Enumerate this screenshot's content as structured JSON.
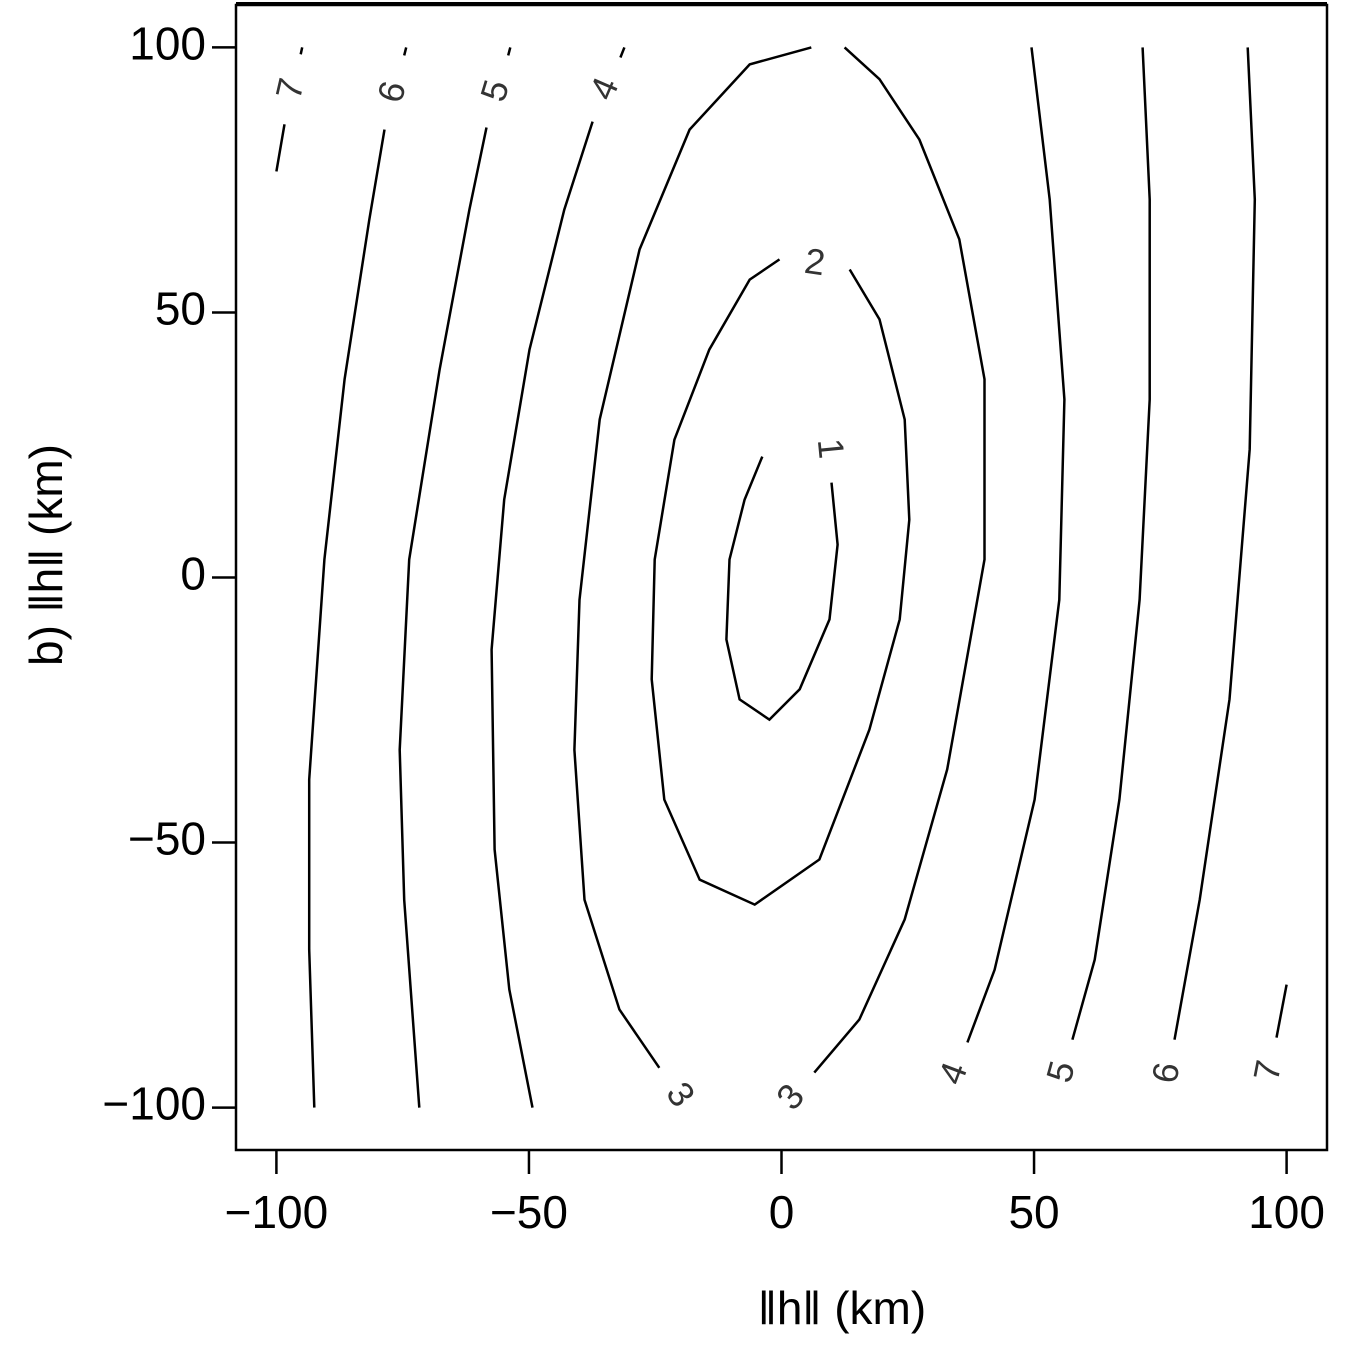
{
  "chart_data": {
    "type": "contour",
    "x_label": "‖h‖ (km)",
    "y_label": "b) ‖h‖ (km)",
    "xlim": [
      -108,
      108
    ],
    "ylim": [
      -108,
      108
    ],
    "xticks": [
      {
        "value": -100,
        "label": "−100"
      },
      {
        "value": -50,
        "label": "−50"
      },
      0,
      50,
      100
    ],
    "yticks": [
      {
        "value": -100,
        "label": "−100"
      },
      {
        "value": -50,
        "label": "−50"
      },
      0,
      50,
      100
    ],
    "color": "#000000",
    "contours": [
      {
        "label": "1",
        "x": [
          9.9,
          11.1,
          9.5,
          3.6,
          -2.4,
          -8.3,
          -10.9,
          -10.3,
          -7.3,
          -3.8
        ],
        "y": [
          17.9,
          6.2,
          -7.9,
          -21.1,
          -26.8,
          -23.0,
          -11.7,
          3.4,
          14.7,
          22.8
        ]
      },
      {
        "label": "2",
        "x": [
          -0.4,
          null,
          13.5,
          19.4,
          24.4,
          25.3,
          23.4,
          17.4,
          7.5,
          -5.3,
          -16.2,
          -23.2,
          -25.7,
          -25.1,
          -21.2,
          -14.3,
          -6.3,
          -0.4
        ],
        "y": [
          60.0,
          null,
          58.1,
          48.7,
          29.8,
          10.9,
          -7.9,
          -28.7,
          -53.2,
          -61.7,
          -57.0,
          -41.9,
          -19.2,
          3.4,
          26.0,
          43.0,
          56.2,
          60.0
        ]
      },
      {
        "label": "3",
        "x": [
          -24.2,
          -32.1,
          -39.0,
          -41.0,
          -40.0,
          -36.0,
          -28.1,
          -18.2,
          -6.3,
          5.9
        ],
        "y": [
          -92.5,
          -81.5,
          -60.8,
          -32.5,
          -4.2,
          29.8,
          61.9,
          84.5,
          96.8,
          100
        ]
      },
      {
        "label": "3",
        "x": [
          6.5,
          15.4,
          24.4,
          32.8,
          40.2,
          40.2,
          35.2,
          27.3,
          19.4,
          12.5
        ],
        "y": [
          -93.4,
          -83.4,
          -64.5,
          -36.2,
          3.4,
          37.4,
          63.8,
          82.6,
          94.0,
          100
        ]
      },
      {
        "label": "4",
        "x": [
          -31.1,
          -31.9,
          null,
          -37.4,
          -43.0,
          -49.9,
          -54.9,
          -57.4,
          -56.8,
          -53.9,
          -49.3
        ],
        "y": [
          100,
          98.1,
          null,
          86.0,
          69.4,
          43.0,
          14.7,
          -13.6,
          -51.3,
          -77.7,
          -100
        ]
      },
      {
        "label": "5",
        "x": [
          -53.7,
          -54.1,
          null,
          -58.4,
          -61.8,
          -67.7,
          -73.7,
          -75.6,
          -74.7,
          -71.7
        ],
        "y": [
          100,
          98.5,
          null,
          84.9,
          69.4,
          39.2,
          3.4,
          -32.5,
          -60.8,
          -100
        ]
      },
      {
        "label": "6",
        "x": [
          -74.3,
          -74.7,
          null,
          -78.6,
          -81.6,
          -86.5,
          -90.5,
          -93.5,
          -93.5,
          -92.5
        ],
        "y": [
          100,
          98.5,
          null,
          84.5,
          67.5,
          37.4,
          3.4,
          -38.1,
          -70.2,
          -100
        ]
      },
      {
        "label": "7",
        "x": [
          -94.9,
          -95.2,
          null,
          -98.4,
          -100
        ],
        "y": [
          100,
          98.7,
          null,
          85.5,
          76.6
        ]
      },
      {
        "label": "4",
        "x": [
          36.8,
          42.2,
          50.1,
          55.0,
          56.0,
          53.1,
          49.5
        ],
        "y": [
          -87.7,
          -74.0,
          -41.9,
          -4.2,
          33.6,
          71.3,
          100
        ]
      },
      {
        "label": "5",
        "x": [
          57.6,
          62.0,
          66.9,
          70.9,
          72.9,
          72.9,
          71.5
        ],
        "y": [
          -87.2,
          -72.1,
          -41.9,
          -4.2,
          33.6,
          71.3,
          100
        ]
      },
      {
        "label": "6",
        "x": [
          77.8,
          82.8,
          88.7,
          92.7,
          93.7,
          92.3
        ],
        "y": [
          -87.2,
          -60.8,
          -23.0,
          24.2,
          71.3,
          100
        ]
      },
      {
        "label": "7",
        "x": [
          98.0,
          100
        ],
        "y": [
          -86.8,
          -76.8
        ]
      }
    ]
  }
}
